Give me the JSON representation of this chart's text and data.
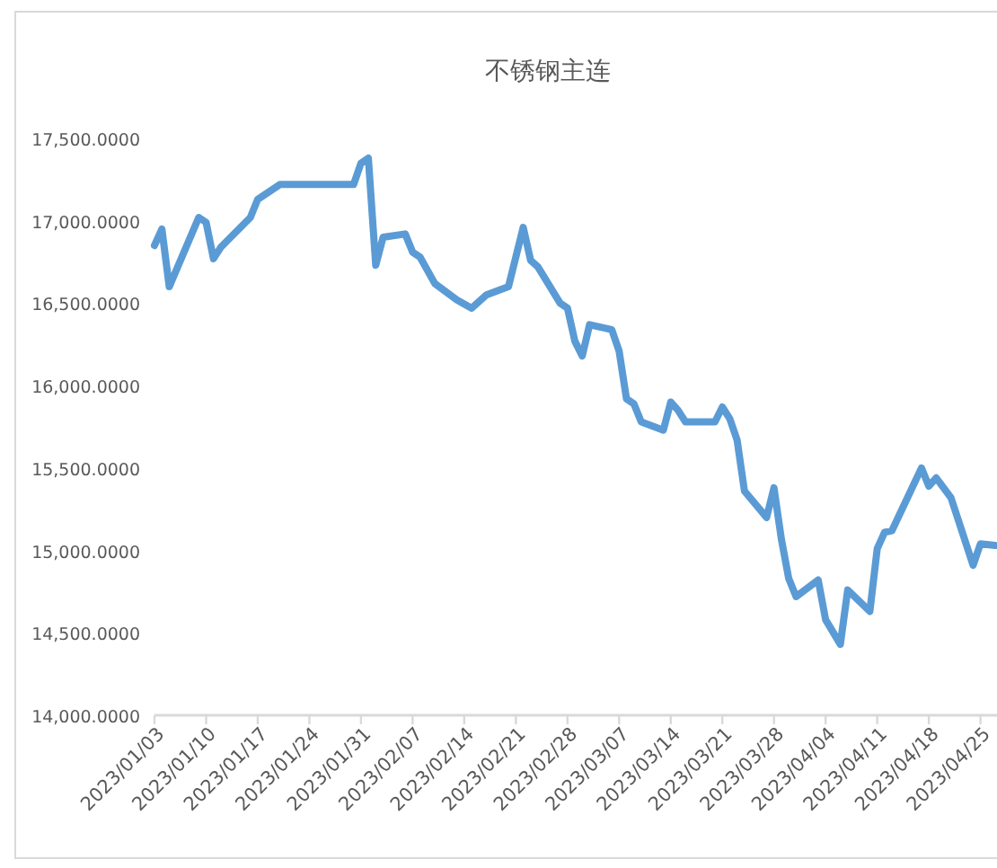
{
  "chart_data": {
    "type": "line",
    "title": "不锈钢主连",
    "x": [
      "2023-01-03",
      "2023-01-04",
      "2023-01-05",
      "2023-01-09",
      "2023-01-10",
      "2023-01-11",
      "2023-01-12",
      "2023-01-16",
      "2023-01-17",
      "2023-01-20",
      "2023-01-30",
      "2023-01-31",
      "2023-02-01",
      "2023-02-02",
      "2023-02-03",
      "2023-02-06",
      "2023-02-07",
      "2023-02-08",
      "2023-02-10",
      "2023-02-13",
      "2023-02-15",
      "2023-02-17",
      "2023-02-20",
      "2023-02-22",
      "2023-02-23",
      "2023-02-24",
      "2023-02-27",
      "2023-02-28",
      "2023-03-01",
      "2023-03-02",
      "2023-03-03",
      "2023-03-06",
      "2023-03-07",
      "2023-03-08",
      "2023-03-09",
      "2023-03-10",
      "2023-03-13",
      "2023-03-14",
      "2023-03-15",
      "2023-03-16",
      "2023-03-20",
      "2023-03-21",
      "2023-03-22",
      "2023-03-23",
      "2023-03-24",
      "2023-03-27",
      "2023-03-28",
      "2023-03-29",
      "2023-03-30",
      "2023-03-31",
      "2023-04-03",
      "2023-04-04",
      "2023-04-06",
      "2023-04-07",
      "2023-04-10",
      "2023-04-11",
      "2023-04-12",
      "2023-04-13",
      "2023-04-17",
      "2023-04-18",
      "2023-04-19",
      "2023-04-21",
      "2023-04-24",
      "2023-04-25",
      "2023-04-27"
    ],
    "series": [
      {
        "color": "#5b9bd5",
        "values": [
          16850,
          16950,
          16600,
          17020,
          16990,
          16770,
          16840,
          17020,
          17130,
          17220,
          17220,
          17350,
          17380,
          16730,
          16900,
          16920,
          16810,
          16780,
          16620,
          16520,
          16470,
          16550,
          16600,
          16960,
          16760,
          16720,
          16500,
          16470,
          16270,
          16180,
          16370,
          16340,
          16210,
          15920,
          15890,
          15780,
          15730,
          15900,
          15850,
          15780,
          15780,
          15870,
          15800,
          15670,
          15360,
          15200,
          15380,
          15070,
          14830,
          14720,
          14820,
          14580,
          14430,
          14760,
          14630,
          15010,
          15110,
          15120,
          15500,
          15390,
          15440,
          15320,
          14910,
          15040,
          15030
        ]
      }
    ],
    "xlim": [
      "2023-01-03",
      "2023-04-27"
    ],
    "xticks": [
      {
        "value": "2023-01-03",
        "label": "2023/01/03"
      },
      {
        "value": "2023-01-10",
        "label": "2023/01/10"
      },
      {
        "value": "2023-01-17",
        "label": "2023/01/17"
      },
      {
        "value": "2023-01-24",
        "label": "2023/01/24"
      },
      {
        "value": "2023-01-31",
        "label": "2023/01/31"
      },
      {
        "value": "2023-02-07",
        "label": "2023/02/07"
      },
      {
        "value": "2023-02-14",
        "label": "2023/02/14"
      },
      {
        "value": "2023-02-21",
        "label": "2023/02/21"
      },
      {
        "value": "2023-02-28",
        "label": "2023/02/28"
      },
      {
        "value": "2023-03-07",
        "label": "2023/03/07"
      },
      {
        "value": "2023-03-14",
        "label": "2023/03/14"
      },
      {
        "value": "2023-03-21",
        "label": "2023/03/21"
      },
      {
        "value": "2023-03-28",
        "label": "2023/03/28"
      },
      {
        "value": "2023-04-04",
        "label": "2023/04/04"
      },
      {
        "value": "2023-04-11",
        "label": "2023/04/11"
      },
      {
        "value": "2023-04-18",
        "label": "2023/04/18"
      },
      {
        "value": "2023-04-25",
        "label": "2023/04/25"
      }
    ],
    "ylim": [
      14000,
      17500
    ],
    "yticks": [
      {
        "value": 14000,
        "label": "14,000.0000"
      },
      {
        "value": 14500,
        "label": "14,500.0000"
      },
      {
        "value": 15000,
        "label": "15,000.0000"
      },
      {
        "value": 15500,
        "label": "15,500.0000"
      },
      {
        "value": 16000,
        "label": "16,000.0000"
      },
      {
        "value": 16500,
        "label": "16,500.0000"
      },
      {
        "value": 17000,
        "label": "17,000.0000"
      },
      {
        "value": 17500,
        "label": "17,500.0000"
      }
    ],
    "grid": false,
    "marker": "none",
    "line_style": "solid"
  }
}
